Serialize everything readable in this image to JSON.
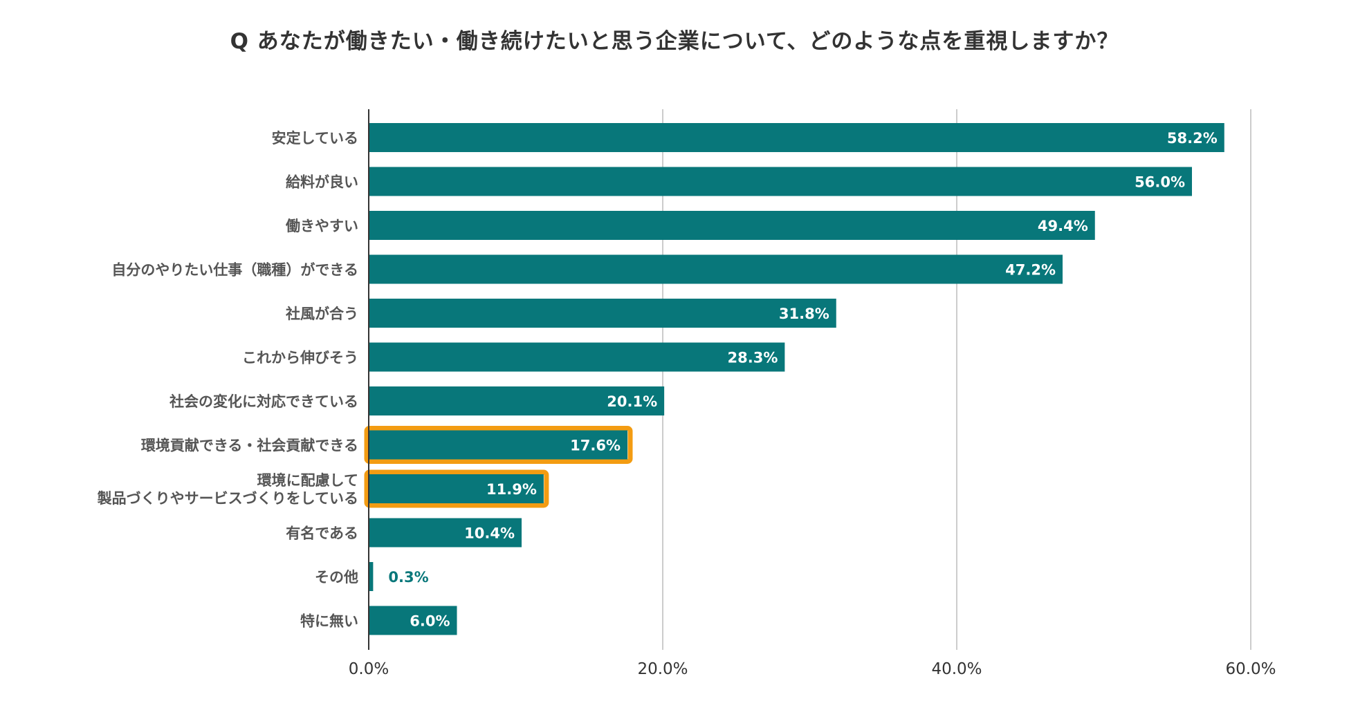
{
  "chart_data": {
    "type": "bar",
    "orientation": "horizontal",
    "title": "Q あなたが働きたい・働き続けたいと思う企業について、どのような点を重視しますか？",
    "categories": [
      "安定している",
      "給料が良い",
      "働きやすい",
      "自分のやりたい仕事（職種）ができる",
      "社風が合う",
      "これから伸びそう",
      "社会の変化に対応できている",
      "環境貢献できる・社会貢献できる",
      "環境に配慮して\n製品づくりやサービスづくりをしている",
      "有名である",
      "その他",
      "特に無い"
    ],
    "values": [
      58.2,
      56.0,
      49.4,
      47.2,
      31.8,
      28.3,
      20.1,
      17.6,
      11.9,
      10.4,
      0.3,
      6.0
    ],
    "value_labels": [
      "58.2%",
      "56.0%",
      "49.4%",
      "47.2%",
      "31.8%",
      "28.3%",
      "20.1%",
      "17.6%",
      "11.9%",
      "10.4%",
      "0.3%",
      "6.0%"
    ],
    "highlighted": [
      7,
      8
    ],
    "xlim": [
      0,
      60
    ],
    "ticks": [
      0,
      20,
      40,
      60
    ],
    "tick_labels": [
      "0.0%",
      "20.0%",
      "40.0%",
      "60.0%"
    ],
    "xlabel": "",
    "ylabel": "",
    "grid": true,
    "legend": "none",
    "colors": {
      "bar": "#08777a",
      "highlight": "#f39c12",
      "grid": "#cccccc",
      "axis": "#333333",
      "label_inside": "#ffffff",
      "label_outside": "#08777a"
    }
  }
}
